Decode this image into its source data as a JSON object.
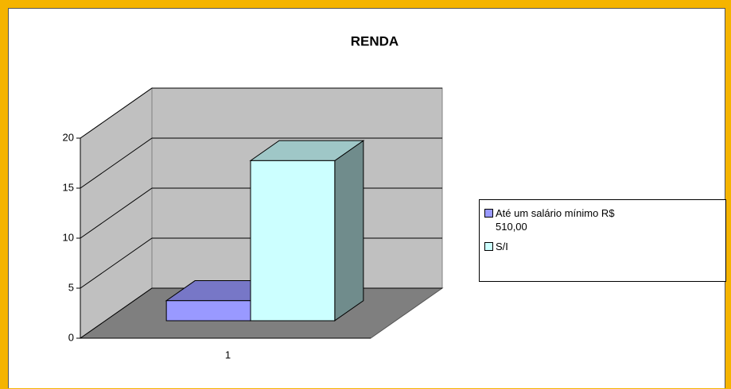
{
  "chart_data": {
    "type": "bar3d",
    "title": "RENDA",
    "categories": [
      "1"
    ],
    "series": [
      {
        "name": "Até um salário mínimo R$ 510,00",
        "color": "#9999ff",
        "values": [
          2
        ]
      },
      {
        "name": "S/I",
        "color": "#ccffff",
        "values": [
          16
        ]
      }
    ],
    "ylim": [
      0,
      20
    ],
    "yticks": [
      0,
      5,
      10,
      15,
      20
    ],
    "grid": true,
    "legend": "right"
  }
}
